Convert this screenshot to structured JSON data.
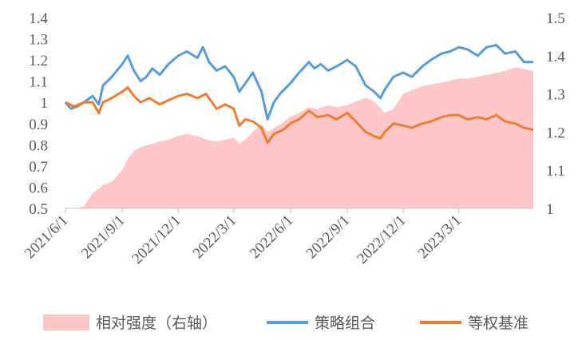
{
  "chart_data": {
    "type": "line",
    "grid": false,
    "legend_position": "bottom",
    "x_labels": [
      "2021/6/1",
      "2021/9/1",
      "2021/12/1",
      "2022/3/1",
      "2022/6/1",
      "2022/9/1",
      "2022/12/1",
      "2023/3/1"
    ],
    "x_range": [
      "2021/6/1",
      "2023/6/30"
    ],
    "y_left": {
      "ticks": [
        "0.5",
        "0.6",
        "0.7",
        "0.8",
        "0.9",
        "1",
        "1.1",
        "1.2",
        "1.3",
        "1.4"
      ],
      "range": [
        0.5,
        1.4
      ]
    },
    "y_right": {
      "ticks": [
        "1",
        "1.1",
        "1.2",
        "1.3",
        "1.4",
        "1.5"
      ],
      "range": [
        1.0,
        1.5
      ]
    },
    "series": [
      {
        "name": "相对强度（右轴）",
        "kind": "area",
        "axis": "right",
        "color": "#FFC7C7",
        "points": [
          [
            "2021/6/1",
            1.0
          ],
          [
            "2021/6/20",
            1.0
          ],
          [
            "2021/7/1",
            1.005
          ],
          [
            "2021/7/15",
            1.04
          ],
          [
            "2021/8/1",
            1.06
          ],
          [
            "2021/8/15",
            1.07
          ],
          [
            "2021/9/1",
            1.1
          ],
          [
            "2021/9/10",
            1.13
          ],
          [
            "2021/9/20",
            1.15
          ],
          [
            "2021/10/1",
            1.16
          ],
          [
            "2021/10/20",
            1.17
          ],
          [
            "2021/11/1",
            1.175
          ],
          [
            "2021/11/15",
            1.18
          ],
          [
            "2021/12/1",
            1.19
          ],
          [
            "2021/12/15",
            1.195
          ],
          [
            "2022/1/1",
            1.19
          ],
          [
            "2022/1/15",
            1.18
          ],
          [
            "2022/2/1",
            1.175
          ],
          [
            "2022/2/15",
            1.18
          ],
          [
            "2022/3/1",
            1.185
          ],
          [
            "2022/3/10",
            1.17
          ],
          [
            "2022/3/20",
            1.18
          ],
          [
            "2022/4/1",
            1.2
          ],
          [
            "2022/4/15",
            1.22
          ],
          [
            "2022/4/25",
            1.2
          ],
          [
            "2022/5/5",
            1.21
          ],
          [
            "2022/5/15",
            1.22
          ],
          [
            "2022/6/1",
            1.24
          ],
          [
            "2022/6/15",
            1.25
          ],
          [
            "2022/7/1",
            1.265
          ],
          [
            "2022/7/15",
            1.26
          ],
          [
            "2022/8/1",
            1.27
          ],
          [
            "2022/8/15",
            1.265
          ],
          [
            "2022/9/1",
            1.27
          ],
          [
            "2022/9/15",
            1.28
          ],
          [
            "2022/10/1",
            1.29
          ],
          [
            "2022/10/15",
            1.28
          ],
          [
            "2022/11/1",
            1.25
          ],
          [
            "2022/11/15",
            1.26
          ],
          [
            "2022/12/1",
            1.3
          ],
          [
            "2022/12/15",
            1.31
          ],
          [
            "2023/1/1",
            1.32
          ],
          [
            "2023/1/15",
            1.325
          ],
          [
            "2023/2/1",
            1.33
          ],
          [
            "2023/2/15",
            1.335
          ],
          [
            "2023/3/1",
            1.34
          ],
          [
            "2023/3/15",
            1.34
          ],
          [
            "2023/4/1",
            1.345
          ],
          [
            "2023/4/15",
            1.35
          ],
          [
            "2023/5/1",
            1.355
          ],
          [
            "2023/5/15",
            1.36
          ],
          [
            "2023/6/1",
            1.37
          ],
          [
            "2023/6/15",
            1.365
          ],
          [
            "2023/6/30",
            1.36
          ]
        ]
      },
      {
        "name": "策略组合",
        "kind": "line",
        "axis": "left",
        "color": "#5B9BD5",
        "points": [
          [
            "2021/6/1",
            1.0
          ],
          [
            "2021/6/10",
            0.97
          ],
          [
            "2021/6/20",
            0.98
          ],
          [
            "2021/7/1",
            1.0
          ],
          [
            "2021/7/15",
            1.03
          ],
          [
            "2021/7/25",
            0.99
          ],
          [
            "2021/8/1",
            1.08
          ],
          [
            "2021/8/15",
            1.12
          ],
          [
            "2021/9/1",
            1.18
          ],
          [
            "2021/9/10",
            1.22
          ],
          [
            "2021/9/20",
            1.15
          ],
          [
            "2021/10/1",
            1.1
          ],
          [
            "2021/10/10",
            1.12
          ],
          [
            "2021/10/20",
            1.16
          ],
          [
            "2021/11/1",
            1.13
          ],
          [
            "2021/11/15",
            1.18
          ],
          [
            "2021/12/1",
            1.22
          ],
          [
            "2021/12/15",
            1.24
          ],
          [
            "2022/1/1",
            1.21
          ],
          [
            "2022/1/10",
            1.26
          ],
          [
            "2022/1/20",
            1.19
          ],
          [
            "2022/2/1",
            1.15
          ],
          [
            "2022/2/15",
            1.17
          ],
          [
            "2022/3/1",
            1.12
          ],
          [
            "2022/3/10",
            1.05
          ],
          [
            "2022/3/20",
            1.09
          ],
          [
            "2022/4/1",
            1.14
          ],
          [
            "2022/4/15",
            1.05
          ],
          [
            "2022/4/25",
            0.92
          ],
          [
            "2022/5/5",
            1.0
          ],
          [
            "2022/5/15",
            1.04
          ],
          [
            "2022/6/1",
            1.09
          ],
          [
            "2022/6/15",
            1.14
          ],
          [
            "2022/7/1",
            1.19
          ],
          [
            "2022/7/10",
            1.16
          ],
          [
            "2022/7/20",
            1.18
          ],
          [
            "2022/8/1",
            1.15
          ],
          [
            "2022/8/15",
            1.17
          ],
          [
            "2022/9/1",
            1.2
          ],
          [
            "2022/9/15",
            1.17
          ],
          [
            "2022/10/1",
            1.08
          ],
          [
            "2022/10/15",
            1.05
          ],
          [
            "2022/10/25",
            1.02
          ],
          [
            "2022/11/1",
            1.06
          ],
          [
            "2022/11/15",
            1.12
          ],
          [
            "2022/12/1",
            1.14
          ],
          [
            "2022/12/15",
            1.12
          ],
          [
            "2023/1/1",
            1.17
          ],
          [
            "2023/1/15",
            1.2
          ],
          [
            "2023/2/1",
            1.23
          ],
          [
            "2023/2/15",
            1.24
          ],
          [
            "2023/3/1",
            1.26
          ],
          [
            "2023/3/15",
            1.25
          ],
          [
            "2023/4/1",
            1.22
          ],
          [
            "2023/4/15",
            1.26
          ],
          [
            "2023/5/1",
            1.27
          ],
          [
            "2023/5/15",
            1.23
          ],
          [
            "2023/6/1",
            1.24
          ],
          [
            "2023/6/15",
            1.19
          ],
          [
            "2023/6/30",
            1.19
          ]
        ]
      },
      {
        "name": "等权基准",
        "kind": "line",
        "axis": "left",
        "color": "#ED7D31",
        "points": [
          [
            "2021/6/1",
            1.0
          ],
          [
            "2021/6/15",
            0.98
          ],
          [
            "2021/7/1",
            1.0
          ],
          [
            "2021/7/15",
            1.0
          ],
          [
            "2021/7/25",
            0.95
          ],
          [
            "2021/8/1",
            1.0
          ],
          [
            "2021/8/15",
            1.02
          ],
          [
            "2021/9/1",
            1.05
          ],
          [
            "2021/9/10",
            1.07
          ],
          [
            "2021/9/20",
            1.03
          ],
          [
            "2021/10/1",
            1.0
          ],
          [
            "2021/10/15",
            1.02
          ],
          [
            "2021/11/1",
            0.99
          ],
          [
            "2021/11/15",
            1.01
          ],
          [
            "2021/12/1",
            1.03
          ],
          [
            "2021/12/15",
            1.04
          ],
          [
            "2022/1/1",
            1.02
          ],
          [
            "2022/1/15",
            1.04
          ],
          [
            "2022/2/1",
            0.97
          ],
          [
            "2022/2/15",
            0.99
          ],
          [
            "2022/3/1",
            0.97
          ],
          [
            "2022/3/10",
            0.89
          ],
          [
            "2022/3/20",
            0.92
          ],
          [
            "2022/4/1",
            0.91
          ],
          [
            "2022/4/15",
            0.88
          ],
          [
            "2022/4/25",
            0.81
          ],
          [
            "2022/5/5",
            0.85
          ],
          [
            "2022/5/20",
            0.87
          ],
          [
            "2022/6/1",
            0.9
          ],
          [
            "2022/6/15",
            0.92
          ],
          [
            "2022/7/1",
            0.96
          ],
          [
            "2022/7/15",
            0.93
          ],
          [
            "2022/8/1",
            0.94
          ],
          [
            "2022/8/15",
            0.92
          ],
          [
            "2022/9/1",
            0.95
          ],
          [
            "2022/9/15",
            0.91
          ],
          [
            "2022/10/1",
            0.86
          ],
          [
            "2022/10/15",
            0.84
          ],
          [
            "2022/10/25",
            0.83
          ],
          [
            "2022/11/1",
            0.86
          ],
          [
            "2022/11/15",
            0.9
          ],
          [
            "2022/12/1",
            0.89
          ],
          [
            "2022/12/15",
            0.88
          ],
          [
            "2023/1/1",
            0.9
          ],
          [
            "2023/1/15",
            0.91
          ],
          [
            "2023/2/1",
            0.93
          ],
          [
            "2023/2/15",
            0.94
          ],
          [
            "2023/3/1",
            0.94
          ],
          [
            "2023/3/15",
            0.92
          ],
          [
            "2023/4/1",
            0.93
          ],
          [
            "2023/4/15",
            0.92
          ],
          [
            "2023/5/1",
            0.94
          ],
          [
            "2023/5/15",
            0.91
          ],
          [
            "2023/6/1",
            0.9
          ],
          [
            "2023/6/15",
            0.88
          ],
          [
            "2023/6/30",
            0.87
          ]
        ]
      }
    ]
  }
}
